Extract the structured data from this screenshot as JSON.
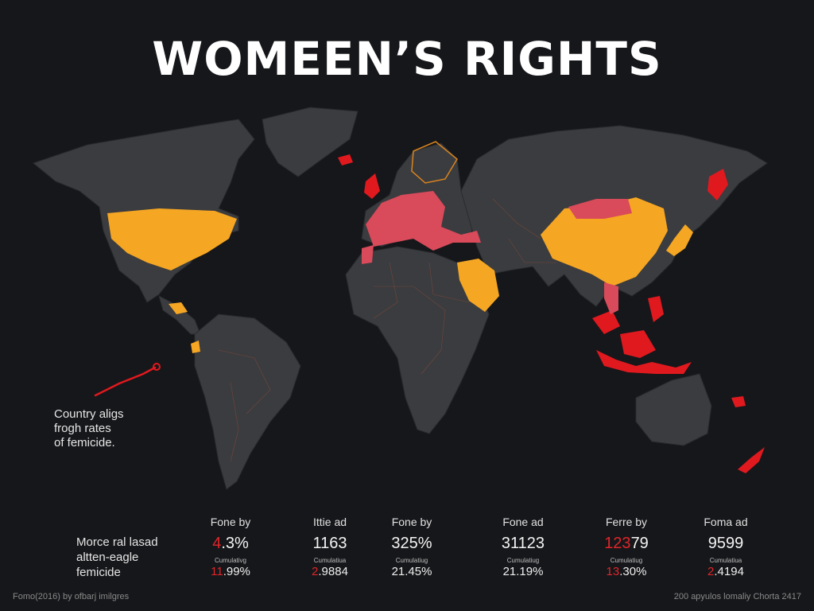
{
  "title": "WOMEEN’S RIGHTS",
  "legend_note": [
    "Country aligs",
    "frogh rates",
    "of femicide."
  ],
  "stats_label": [
    "Morce ral lasad",
    "altten-eagle",
    "femicide"
  ],
  "stats": [
    {
      "head": "Fone by",
      "value_red": "4",
      "value_rest": ".3%",
      "sub": "Cumulativg",
      "value2_red": "11",
      "value2_rest": ".99%"
    },
    {
      "head": "Ittie ad",
      "value_red": "",
      "value_rest": "1163",
      "sub": "Cumulatiua",
      "value2_red": "2",
      "value2_rest": ".9884"
    },
    {
      "head": "Fone by",
      "value_red": "",
      "value_rest": "325%",
      "sub": "Cumulatiug",
      "value2_red": "",
      "value2_rest": "21.45%"
    },
    {
      "head": "Fone ad",
      "value_red": "",
      "value_rest": "31123",
      "sub": "Cumulatiug",
      "value2_red": "",
      "value2_rest": "21.19%"
    },
    {
      "head": "Ferre by",
      "value_red": "123",
      "value_rest": "79",
      "sub": "Cumulatiug",
      "value2_red": "13",
      "value2_rest": ".30%"
    },
    {
      "head": "Foma ad",
      "value_red": "",
      "value_rest": "9599",
      "sub": "Cumulatiua",
      "value2_red": "2",
      "value2_rest": ".4194"
    }
  ],
  "footer_left": "Fomo(2016) by ofbarj imilgres",
  "footer_right": "200 apyulos lomaliy Chorta 2417",
  "colors": {
    "background": "#16171a",
    "land": "#3b3c3f",
    "border": "#8a4a3a",
    "high": "#f5a623",
    "medium": "#d94a5a",
    "severe": "#e0191f"
  }
}
